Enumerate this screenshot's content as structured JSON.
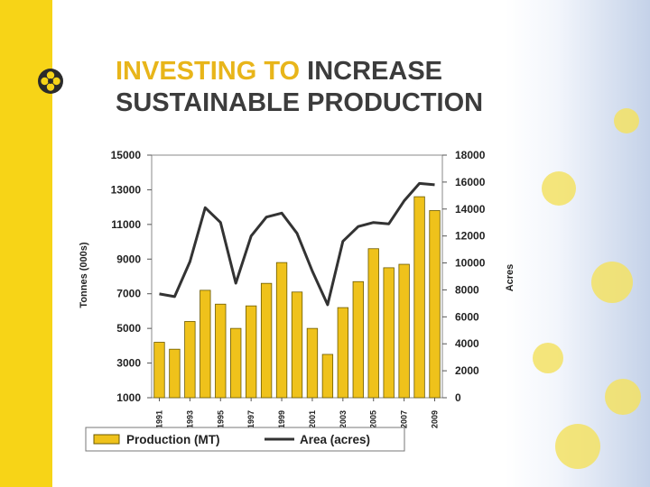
{
  "slide": {
    "title_accent": "INVESTING TO",
    "title_rest_line1": "INCREASE",
    "title_line2": "SUSTAINABLE PRODUCTION",
    "accent_color": "#e8b51a",
    "sidebar_color": "#f7d417",
    "logo_icon": "canola-flower-logo-icon"
  },
  "chart_data": {
    "type": "bar+line",
    "categories": [
      "1991",
      "1992",
      "1993",
      "1994",
      "1995",
      "1996",
      "1997",
      "1998",
      "1999",
      "2000",
      "2001",
      "2002",
      "2003",
      "2004",
      "2005",
      "2006",
      "2007",
      "2008",
      "2009"
    ],
    "x_tick_labels": [
      "1991",
      "1993",
      "1995",
      "1997",
      "1999",
      "2001",
      "2003",
      "2005",
      "2007",
      "2009"
    ],
    "series": [
      {
        "name": "Production (MT)",
        "kind": "bar",
        "axis": "left",
        "color": "#efc21b",
        "values": [
          4200,
          3800,
          5400,
          7200,
          6400,
          5000,
          6300,
          7600,
          8800,
          7100,
          5000,
          3500,
          6200,
          7700,
          9600,
          8500,
          8700,
          12600,
          11800
        ]
      },
      {
        "name": "Area (acres)",
        "kind": "line",
        "axis": "right",
        "color": "#333333",
        "values": [
          7700,
          7500,
          10100,
          14100,
          13000,
          8500,
          12000,
          13400,
          13700,
          12200,
          9400,
          6900,
          11600,
          12700,
          13000,
          12900,
          14600,
          15900,
          15800
        ]
      }
    ],
    "left_axis": {
      "label": "Tonnes (000s)",
      "ylim": [
        1000,
        15000
      ],
      "ticks": [
        "15000",
        "13000",
        "11000",
        "9000",
        "7000",
        "5000",
        "3000",
        "1000"
      ]
    },
    "right_axis": {
      "label": "Acres",
      "ylim": [
        0,
        18000
      ],
      "ticks": [
        "18000",
        "16000",
        "14000",
        "12000",
        "10000",
        "8000",
        "6000",
        "4000",
        "2000",
        "0"
      ]
    },
    "legend_position": "bottom",
    "grid": false
  }
}
